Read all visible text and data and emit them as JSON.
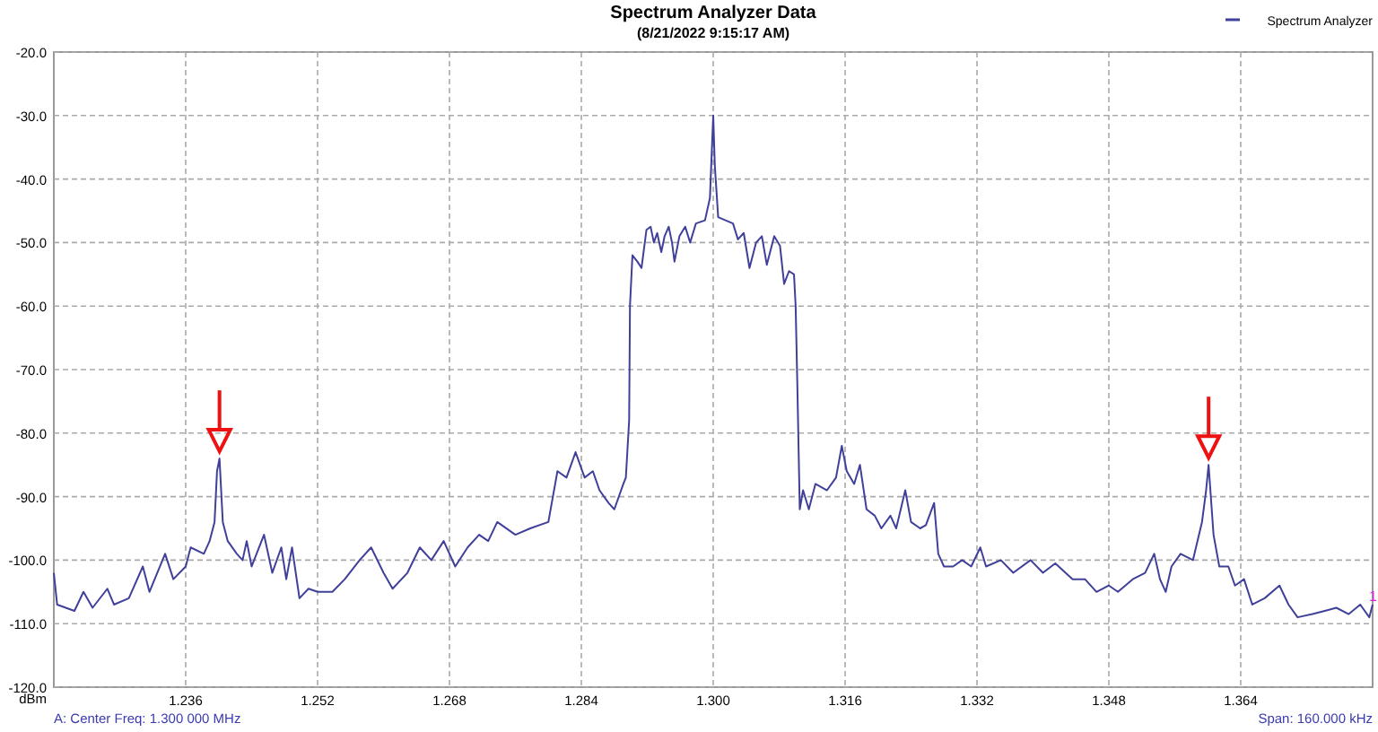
{
  "chart_data": {
    "type": "line",
    "title": "Spectrum Analyzer Data",
    "subtitle": "(8/21/2022 9:15:17 AM)",
    "ylabel": "dBm",
    "annotations": [
      "A: Center Freq: 1.300 000 MHz",
      "Span: 160.000 kHz",
      {
        "text": "1",
        "x": 1.38,
        "y": -107
      }
    ],
    "xlim": [
      1.22,
      1.38
    ],
    "ylim": [
      -120,
      -20
    ],
    "xticks": [
      1.236,
      1.252,
      1.268,
      1.284,
      {
        "value": 1.3,
        "label": "1.300"
      },
      1.316,
      1.332,
      1.348,
      1.364
    ],
    "yticks": [
      {
        "value": -120,
        "label": "-120.0"
      },
      {
        "value": -110,
        "label": "-110.0"
      },
      {
        "value": -100,
        "label": "-100.0"
      },
      {
        "value": -90,
        "label": "-90.0"
      },
      {
        "value": -80,
        "label": "-80.0"
      },
      {
        "value": -70,
        "label": "-70.0"
      },
      {
        "value": -60,
        "label": "-60.0"
      },
      {
        "value": -50,
        "label": "-50.0"
      },
      {
        "value": -40,
        "label": "-40.0"
      },
      {
        "value": -30,
        "label": "-30.0"
      },
      {
        "value": -20,
        "label": "-20.0"
      }
    ],
    "grid": true,
    "legend": "top right",
    "marker": "none",
    "line_style": "solid",
    "series": [
      {
        "name": "Spectrum Analyzer",
        "color": "#40409a",
        "x": [
          1.22,
          1.2204,
          1.2225,
          1.2236,
          1.2247,
          1.2265,
          1.2273,
          1.2291,
          1.2308,
          1.2316,
          1.2335,
          1.2345,
          1.236,
          1.2366,
          1.2382,
          1.2389,
          1.2395,
          1.2398,
          1.2401,
          1.2405,
          1.2411,
          1.2422,
          1.2429,
          1.2434,
          1.244,
          1.2455,
          1.2465,
          1.2476,
          1.2482,
          1.2489,
          1.2498,
          1.2509,
          1.252,
          1.2538,
          1.2553,
          1.2571,
          1.2585,
          1.26,
          1.2611,
          1.2629,
          1.2644,
          1.2658,
          1.2673,
          1.2687,
          1.2702,
          1.2716,
          1.2727,
          1.2738,
          1.276,
          1.2778,
          1.28,
          1.2811,
          1.2822,
          1.2833,
          1.2844,
          1.2854,
          1.2862,
          1.2873,
          1.288,
          1.2891,
          1.2894,
          1.2898,
          1.2899,
          1.2902,
          1.2908,
          1.2913,
          1.2919,
          1.2924,
          1.2928,
          1.2932,
          1.2937,
          1.2941,
          1.2946,
          1.295,
          1.2953,
          1.2959,
          1.2966,
          1.2972,
          1.2979,
          1.299,
          1.2996,
          1.3,
          1.3002,
          1.3006,
          1.3015,
          1.3024,
          1.303,
          1.3037,
          1.3044,
          1.3052,
          1.3059,
          1.3065,
          1.3074,
          1.3081,
          1.3086,
          1.3092,
          1.3098,
          1.31,
          1.3102,
          1.3105,
          1.3109,
          1.3116,
          1.3124,
          1.3138,
          1.3149,
          1.3156,
          1.3162,
          1.3171,
          1.3178,
          1.3186,
          1.3196,
          1.3204,
          1.3215,
          1.3222,
          1.3233,
          1.324,
          1.3251,
          1.3258,
          1.3268,
          1.3273,
          1.328,
          1.3291,
          1.3302,
          1.3313,
          1.3324,
          1.3331,
          1.3349,
          1.3364,
          1.3385,
          1.34,
          1.3415,
          1.3436,
          1.3451,
          1.3465,
          1.348,
          1.3491,
          1.3509,
          1.3524,
          1.3535,
          1.3542,
          1.3549,
          1.3556,
          1.3567,
          1.3582,
          1.3593,
          1.3598,
          1.3601,
          1.3607,
          1.3614,
          1.3625,
          1.3633,
          1.3644,
          1.3654,
          1.3669,
          1.3687,
          1.3698,
          1.3709,
          1.3727,
          1.3742,
          1.3756,
          1.3771,
          1.3785,
          1.3796,
          1.38
        ],
        "values": [
          -102,
          -107,
          -108,
          -105,
          -107.5,
          -104.5,
          -107,
          -106,
          -101,
          -105,
          -99,
          -103,
          -101,
          -98,
          -99,
          -97,
          -94,
          -86,
          -84,
          -94,
          -97,
          -99,
          -100,
          -97,
          -101,
          -96,
          -102,
          -98,
          -103,
          -98,
          -106,
          -104.5,
          -105,
          -105,
          -103,
          -100,
          -98,
          -102,
          -104.5,
          -102,
          -98,
          -100,
          -97,
          -101,
          -98,
          -96,
          -97,
          -94,
          -96,
          -95,
          -94,
          -86,
          -87,
          -83,
          -87,
          -86,
          -89,
          -91,
          -92,
          -88,
          -87,
          -78,
          -60,
          -52,
          -53,
          -54,
          -48,
          -47.5,
          -50,
          -48.5,
          -51.5,
          -49,
          -47.5,
          -50,
          -53,
          -49,
          -47.5,
          -50,
          -47,
          -46.5,
          -43,
          -30,
          -38,
          -46,
          -46.5,
          -47,
          -49.5,
          -48.5,
          -54,
          -50,
          -49,
          -53.5,
          -49,
          -50.5,
          -56.5,
          -54.5,
          -55,
          -60,
          -72,
          -92,
          -89,
          -92,
          -88,
          -89,
          -87,
          -82,
          -86,
          -88,
          -85,
          -92,
          -93,
          -95,
          -93,
          -95,
          -89,
          -94,
          -95,
          -94.5,
          -91,
          -99,
          -101,
          -101,
          -100,
          -101,
          -98,
          -101,
          -100,
          -102,
          -100,
          -102,
          -100.5,
          -103,
          -103,
          -105,
          -104,
          -105,
          -103,
          -102,
          -99,
          -103,
          -105,
          -101,
          -99,
          -100,
          -94,
          -89,
          -85,
          -96,
          -101,
          -101,
          -104,
          -103,
          -107,
          -106,
          -104,
          -107,
          -109,
          -108.5,
          -108,
          -107.5,
          -108.5,
          -107,
          -109,
          -107
        ]
      }
    ]
  }
}
